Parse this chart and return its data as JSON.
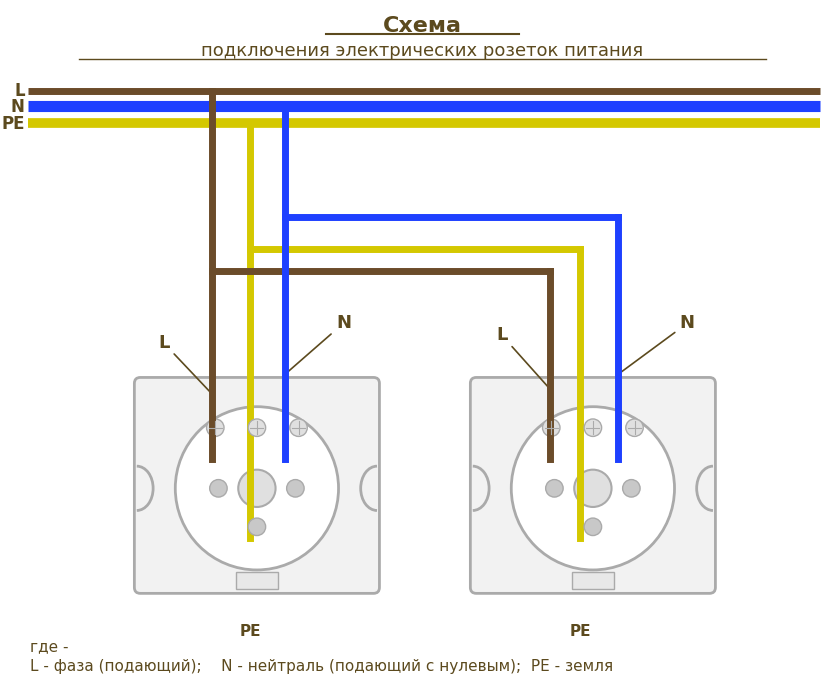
{
  "title_line1": "Схема",
  "title_line2": "подключения электрических розеток питания",
  "bg_color": "#FFFFFF",
  "wire_L_color": "#6B4C2A",
  "wire_N_color": "#1E40FF",
  "wire_PE_color": "#D4C800",
  "socket_outline_color": "#AAAAAA",
  "text_color": "#5C4A1E",
  "bottom_text": "L - фаза (подающий);    N - нейтраль (подающий с нулевым);  PE - земля",
  "where_text": "где -",
  "label_PE": "PE",
  "label_PE2": "PE"
}
